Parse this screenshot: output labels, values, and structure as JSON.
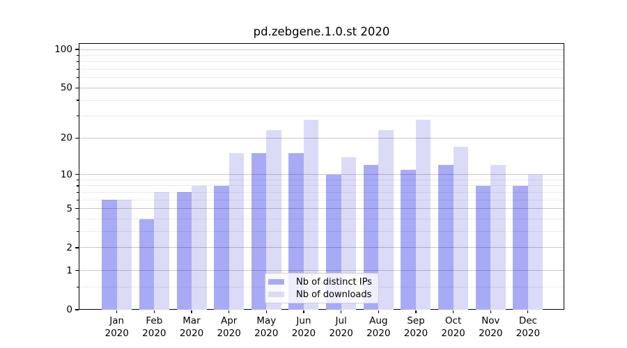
{
  "title": "pd.zebgene.1.0.st 2020",
  "colors": {
    "distinct_ips_bar": "#a9aaf6",
    "downloads_bar": "#dbdbf8",
    "axis": "#000000",
    "grid_major": "rgba(0,0,0,0.22)",
    "grid_minor": "rgba(0,0,0,0.08)"
  },
  "legend": {
    "items": [
      {
        "label": "Nb of distinct IPs",
        "color": "#a9aaf6"
      },
      {
        "label": "Nb of downloads",
        "color": "#dbdbf8"
      }
    ]
  },
  "chart_data": {
    "type": "bar",
    "title": "pd.zebgene.1.0.st 2020",
    "categories": [
      "Jan 2020",
      "Feb 2020",
      "Mar 2020",
      "Apr 2020",
      "May 2020",
      "Jun 2020",
      "Jul 2020",
      "Aug 2020",
      "Sep 2020",
      "Oct 2020",
      "Nov 2020",
      "Dec 2020"
    ],
    "x_tick_months": [
      "Jan",
      "Feb",
      "Mar",
      "Apr",
      "May",
      "Jun",
      "Jul",
      "Aug",
      "Sep",
      "Oct",
      "Nov",
      "Dec"
    ],
    "x_tick_year": "2020",
    "series": [
      {
        "name": "Nb of distinct IPs",
        "color": "#a9aaf6",
        "values": [
          6,
          4,
          7,
          8,
          15,
          15,
          10,
          12,
          11,
          12,
          8,
          8
        ]
      },
      {
        "name": "Nb of downloads",
        "color": "#dbdbf8",
        "values": [
          6,
          7,
          8,
          15,
          23,
          28,
          14,
          23,
          28,
          17,
          12,
          10
        ]
      }
    ],
    "xlabel": "",
    "ylabel": "",
    "y_scale": "log10(1+y)",
    "y_major_ticks": [
      0,
      1,
      2,
      5,
      10,
      20,
      50,
      100
    ],
    "y_minor_ticks": [
      0.5,
      3,
      4,
      6,
      7,
      8,
      9,
      30,
      40,
      60,
      70,
      80,
      90
    ],
    "ylim": [
      0,
      110.5
    ],
    "grid": true,
    "legend_position": "lower-center-inside"
  }
}
